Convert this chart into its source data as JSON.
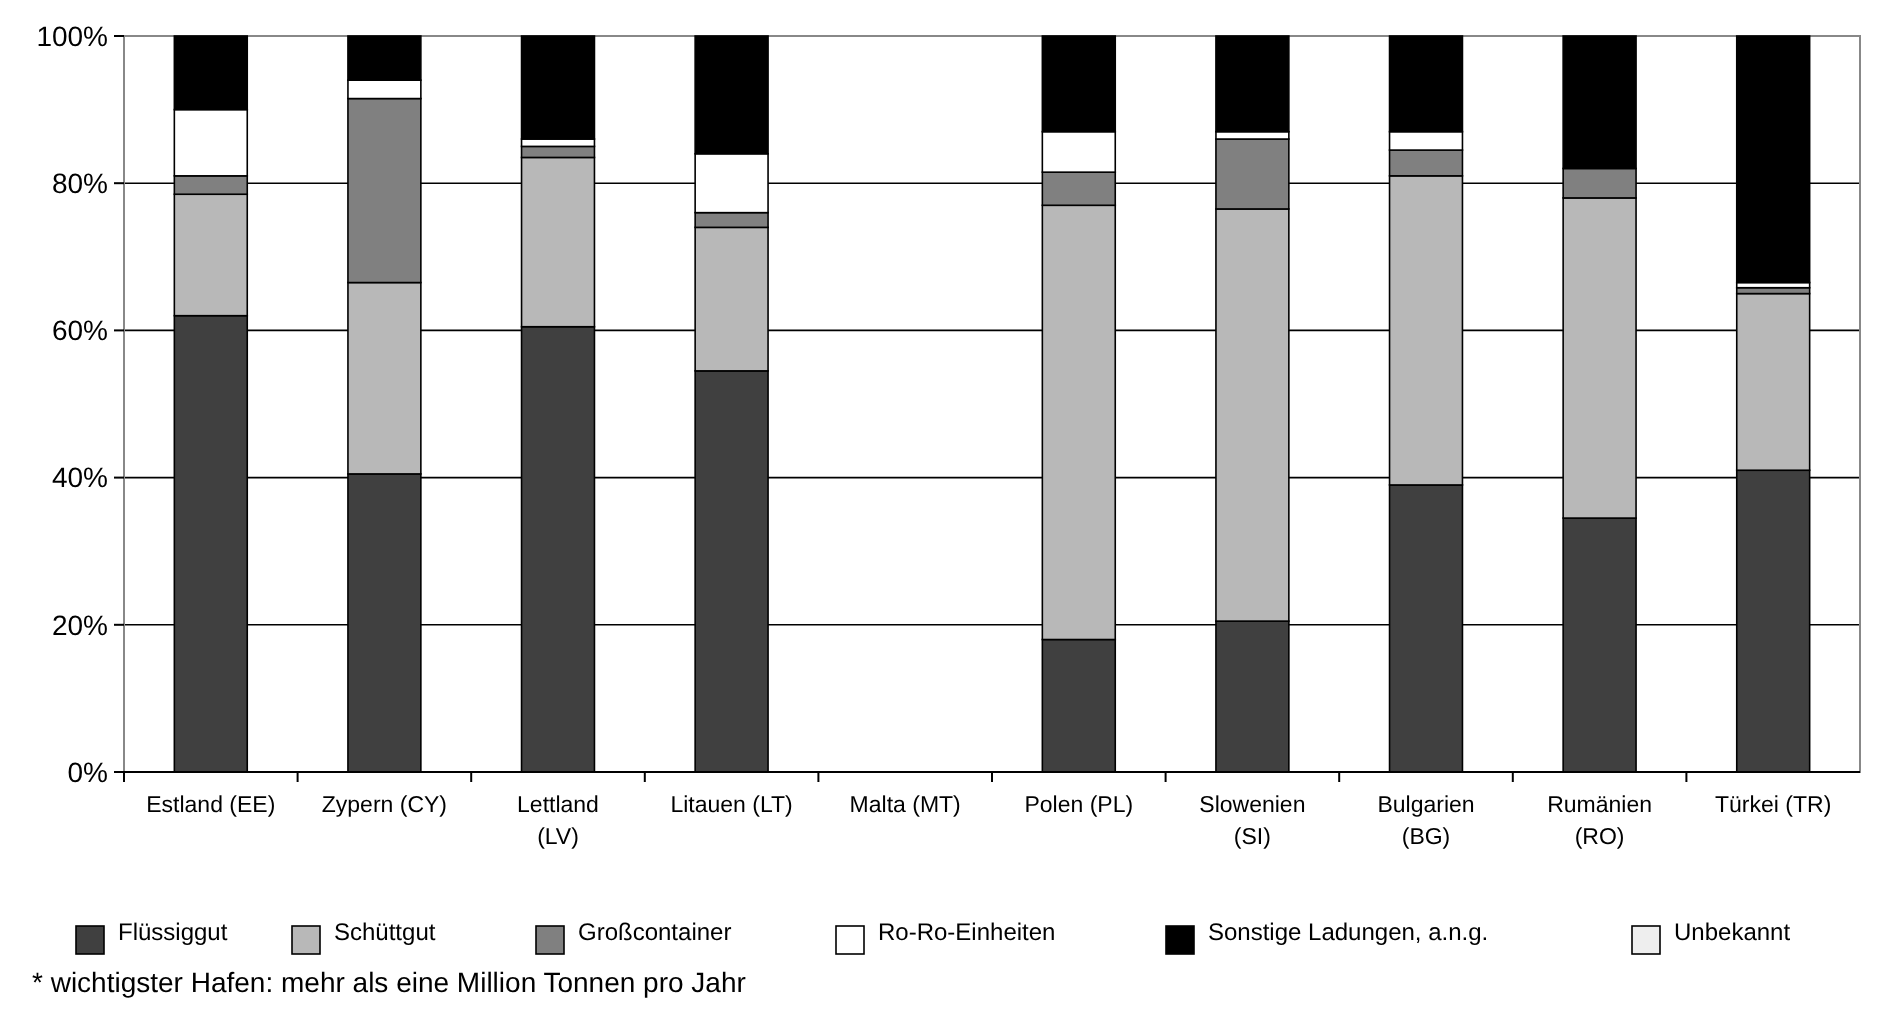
{
  "chart_data": {
    "type": "bar",
    "stacked": true,
    "categories": [
      "Estland (EE)",
      "Zypern (CY)",
      "Lettland (LV)",
      "Litauen (LT)",
      "Malta (MT)",
      "Polen (PL)",
      "Slowenien (SI)",
      "Bulgarien (BG)",
      "Rumänien (RO)",
      "Türkei (TR)"
    ],
    "series": [
      {
        "name": "Flüssiggut",
        "color": "#404040",
        "values": [
          62,
          40.5,
          60.5,
          54.5,
          null,
          18,
          20.5,
          39,
          34.5,
          41
        ]
      },
      {
        "name": "Schüttgut",
        "color": "#b8b8b8",
        "values": [
          16.5,
          26,
          23,
          19.5,
          null,
          59,
          56,
          42,
          43.5,
          24
        ]
      },
      {
        "name": "Großcontainer",
        "color": "#808080",
        "values": [
          2.5,
          25,
          1.5,
          2,
          null,
          4.5,
          9.5,
          3.5,
          4,
          0.8
        ]
      },
      {
        "name": "Ro-Ro-Einheiten",
        "color": "#ffffff",
        "values": [
          9,
          2.5,
          1,
          8,
          null,
          5.5,
          1,
          2.5,
          0,
          0.7
        ]
      },
      {
        "name": "Sonstige Ladungen, a.n.g.",
        "color": "#000000",
        "values": [
          10,
          6,
          14,
          16,
          null,
          13,
          13,
          13,
          18,
          33.5
        ]
      },
      {
        "name": "Unbekannt",
        "color": "#eeeeee",
        "values": [
          0,
          0,
          0,
          0,
          null,
          0,
          0,
          0,
          0,
          0
        ]
      }
    ],
    "ylim": [
      0,
      100
    ],
    "yticks": [
      {
        "value": 0,
        "label": "0%"
      },
      {
        "value": 20,
        "label": "20%"
      },
      {
        "value": 40,
        "label": "40%"
      },
      {
        "value": 60,
        "label": "60%"
      },
      {
        "value": 80,
        "label": "80%"
      },
      {
        "value": 100,
        "label": "100%"
      }
    ],
    "grid": "y",
    "legend": "bottom",
    "annotations": [
      "* wichtigster Hafen: mehr als eine Million Tonnen pro Jahr"
    ]
  }
}
